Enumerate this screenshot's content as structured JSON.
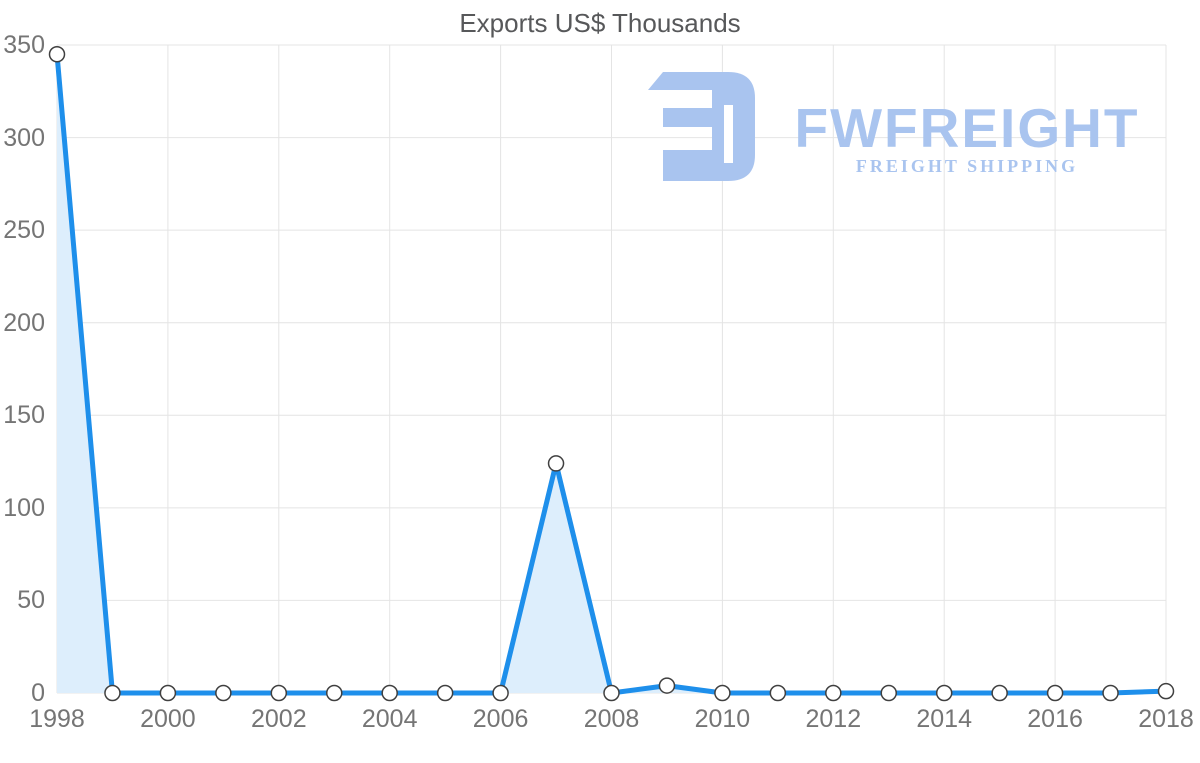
{
  "chart_data": {
    "type": "area",
    "title": "Exports US$ Thousands",
    "x": [
      1998,
      1999,
      2000,
      2001,
      2002,
      2003,
      2004,
      2005,
      2006,
      2007,
      2008,
      2009,
      2010,
      2011,
      2012,
      2013,
      2014,
      2015,
      2016,
      2017,
      2018
    ],
    "series": [
      {
        "name": "Exports US$ Thousands",
        "values": [
          345,
          0,
          0,
          0,
          0,
          0,
          0,
          0,
          0,
          124,
          0,
          4,
          0,
          0,
          0,
          0,
          0,
          0,
          0,
          0,
          1
        ]
      }
    ],
    "xlim": [
      1998,
      2018
    ],
    "ylim": [
      0,
      350
    ],
    "xticks": [
      1998,
      2000,
      2002,
      2004,
      2006,
      2008,
      2010,
      2012,
      2014,
      2016,
      2018
    ],
    "yticks": [
      0,
      50,
      100,
      150,
      200,
      250,
      300,
      350
    ],
    "grid": true,
    "legend_position": "none",
    "xlabel": "",
    "ylabel": ""
  },
  "logo": {
    "wordmark": "FWFREIGHT",
    "subtitle": "FREIGHT SHIPPING"
  },
  "colors": {
    "line": "#1e8feb",
    "area_fill": "#ddeefc",
    "grid": "#e4e4e4",
    "axis_text": "#757575",
    "title_text": "#57585a",
    "marker_fill": "#ffffff",
    "marker_stroke": "#404040",
    "logo": "#a9c4ef"
  }
}
